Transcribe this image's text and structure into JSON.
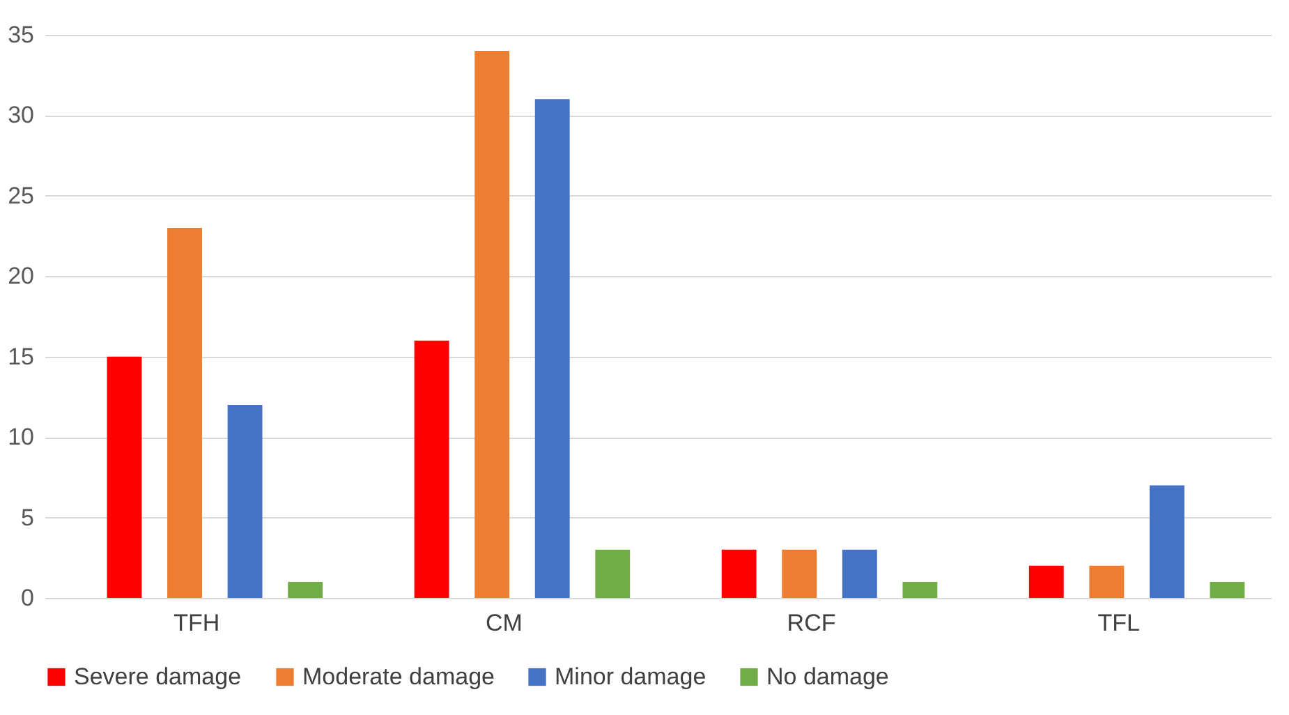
{
  "chart_data": {
    "type": "bar",
    "categories": [
      "TFH",
      "CM",
      "RCF",
      "TFL"
    ],
    "series": [
      {
        "name": "Severe damage",
        "color": "#ff0000",
        "values": [
          15,
          16,
          3,
          2
        ]
      },
      {
        "name": "Moderate damage",
        "color": "#ed7d31",
        "values": [
          23,
          34,
          3,
          2
        ]
      },
      {
        "name": "Minor damage",
        "color": "#4472c4",
        "values": [
          12,
          31,
          3,
          7
        ]
      },
      {
        "name": "No damage",
        "color": "#70ad47",
        "values": [
          1,
          3,
          1,
          1
        ]
      }
    ],
    "ylim": [
      0,
      35
    ],
    "yticks": [
      0,
      5,
      10,
      15,
      20,
      25,
      30,
      35
    ],
    "grid": "y",
    "legend": "bottom"
  }
}
